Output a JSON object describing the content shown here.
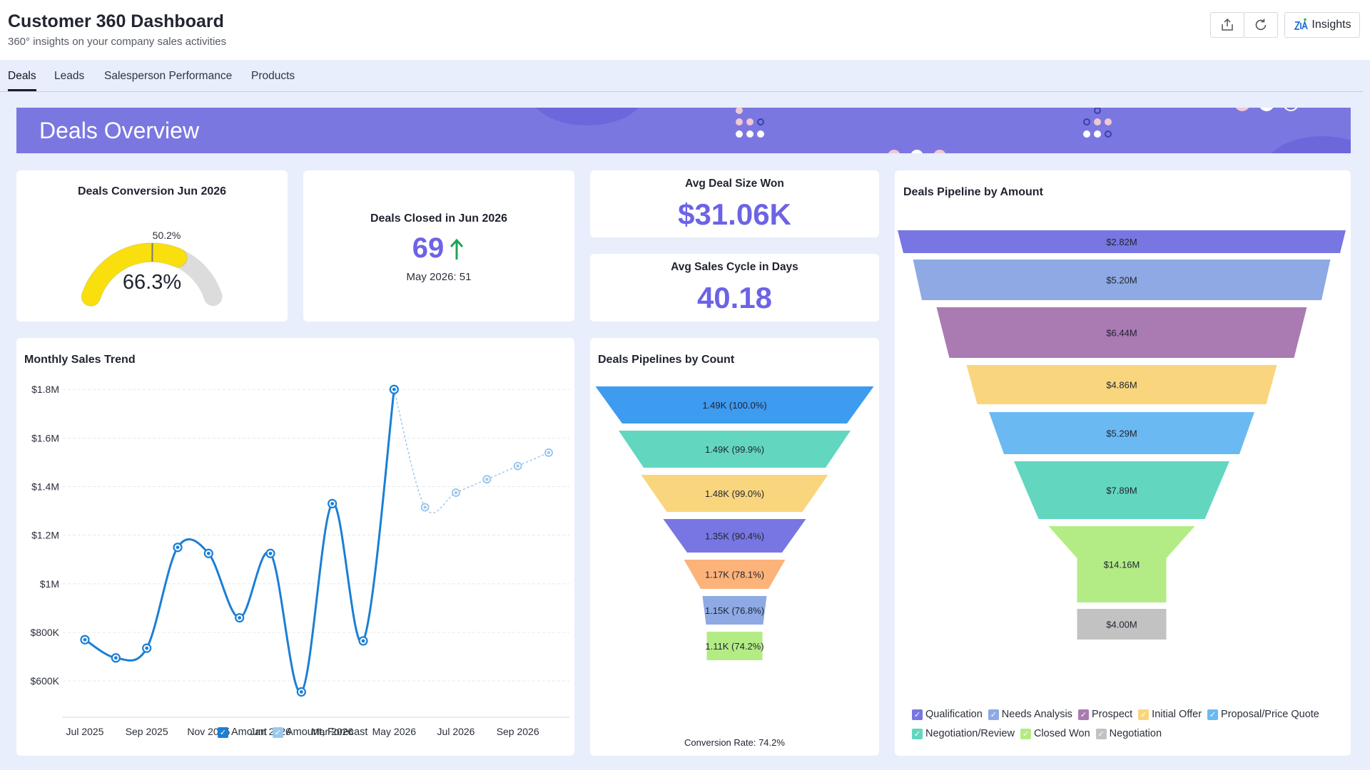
{
  "header": {
    "title": "Customer 360 Dashboard",
    "subtitle": "360° insights on your company sales activities",
    "buttons": {
      "export_icon": "export-icon",
      "refresh_icon": "refresh-icon",
      "insights_label": "Insights"
    }
  },
  "tabs": [
    {
      "label": "Deals",
      "active": true
    },
    {
      "label": "Leads",
      "active": false
    },
    {
      "label": "Salesperson Performance",
      "active": false
    },
    {
      "label": "Products",
      "active": false
    }
  ],
  "banner": {
    "title": "Deals Overview"
  },
  "gauge": {
    "title": "Deals Conversion Jun 2026",
    "value_label": "66.3%",
    "value": 66.3,
    "marker_label": "50.2%",
    "marker": 50.2,
    "colors": {
      "fill": "#f9df0d",
      "track": "#dcdcdc",
      "marker": "#7a7a7a"
    }
  },
  "deals_closed": {
    "title": "Deals Closed in Jun 2026",
    "value": "69",
    "trend_icon": "arrow-up-icon",
    "comparison": "May 2026: 51"
  },
  "avg_deal": {
    "title": "Avg Deal Size Won",
    "value": "$31.06K"
  },
  "avg_cycle": {
    "title": "Avg Sales Cycle in Days",
    "value": "40.18"
  },
  "monthly": {
    "title": "Monthly Sales Trend",
    "chart_data": {
      "type": "line",
      "title": "Monthly Sales Trend",
      "xlabel": "",
      "ylabel": "",
      "x": [
        "Jul 2025",
        "Aug 2025",
        "Sep 2025",
        "Oct 2025",
        "Nov 2025",
        "Dec 2025",
        "Jan 2026",
        "Feb 2026",
        "Mar 2026",
        "Apr 2026",
        "May 2026",
        "Jun 2026",
        "Jul 2026",
        "Aug 2026",
        "Sep 2026",
        "Oct 2026"
      ],
      "x_tick_labels": [
        "Jul 2025",
        "Sep 2025",
        "Nov 2025",
        "Jan 2026",
        "Mar 2026",
        "May 2026",
        "Jul 2026",
        "Sep 2026"
      ],
      "x_tick_index": [
        0,
        2,
        4,
        6,
        8,
        10,
        12,
        14
      ],
      "y_tick_labels": [
        "$600K",
        "$800K",
        "$1M",
        "$1.2M",
        "$1.4M",
        "$1.6M",
        "$1.8M"
      ],
      "y_ticks": [
        600000,
        800000,
        1000000,
        1200000,
        1400000,
        1600000,
        1800000
      ],
      "ylim": [
        530000,
        1830000
      ],
      "grid": true,
      "legend_position": "bottom",
      "series": [
        {
          "name": "Amount",
          "color": "#1a7fd6",
          "values": [
            770000,
            695000,
            735000,
            1150000,
            1125000,
            860000,
            1125000,
            555000,
            1330000,
            765000,
            1800000,
            null,
            null,
            null,
            null,
            null
          ]
        },
        {
          "name": "Amount, Forecast",
          "color": "#9ac8ef",
          "values": [
            null,
            null,
            null,
            null,
            null,
            null,
            null,
            null,
            null,
            null,
            1800000,
            1315000,
            1375000,
            1430000,
            1485000,
            1540000
          ]
        }
      ]
    }
  },
  "count_funnel": {
    "title": "Deals Pipelines by Count",
    "conversion_label": "Conversion Rate: 74.2%",
    "chart_data": {
      "type": "funnel",
      "title": "Deals Pipelines by Count",
      "stages": [
        {
          "label": "1.49K (100.0%)",
          "value": 1490,
          "percent": 100.0,
          "color": "#3d9bf0"
        },
        {
          "label": "1.49K (99.9%)",
          "value": 1490,
          "percent": 99.9,
          "color": "#63d6bf"
        },
        {
          "label": "1.48K (99.0%)",
          "value": 1480,
          "percent": 99.0,
          "color": "#f9d67d"
        },
        {
          "label": "1.35K (90.4%)",
          "value": 1350,
          "percent": 90.4,
          "color": "#7876e2"
        },
        {
          "label": "1.17K (78.1%)",
          "value": 1170,
          "percent": 78.1,
          "color": "#fcb37a"
        },
        {
          "label": "1.15K (76.8%)",
          "value": 1150,
          "percent": 76.8,
          "color": "#8ea9e3"
        },
        {
          "label": "1.11K (74.2%)",
          "value": 1110,
          "percent": 74.2,
          "color": "#b3ec84"
        }
      ]
    }
  },
  "amount_funnel": {
    "title": "Deals Pipeline by Amount",
    "chart_data": {
      "type": "funnel",
      "title": "Deals Pipeline by Amount",
      "legend_position": "bottom",
      "stages": [
        {
          "name": "Qualification",
          "label": "$2.82M",
          "value": 2.82,
          "color": "#7876e2"
        },
        {
          "name": "Needs Analysis",
          "label": "$5.20M",
          "value": 5.2,
          "color": "#8ea9e3"
        },
        {
          "name": "Prospect",
          "label": "$6.44M",
          "value": 6.44,
          "color": "#aa7ab2"
        },
        {
          "name": "Initial Offer",
          "label": "$4.86M",
          "value": 4.86,
          "color": "#f9d67d"
        },
        {
          "name": "Proposal/Price Quote",
          "label": "$5.29M",
          "value": 5.29,
          "color": "#6bb9f2"
        },
        {
          "name": "Negotiation/Review",
          "label": "$7.89M",
          "value": 7.89,
          "color": "#63d6bf"
        },
        {
          "name": "Closed Won",
          "label": "$14.16M",
          "value": 14.16,
          "color": "#b3ec84"
        },
        {
          "name": "Negotiation",
          "label": "$4.00M",
          "value": 4.0,
          "color": "#c2c2c2"
        }
      ]
    }
  }
}
